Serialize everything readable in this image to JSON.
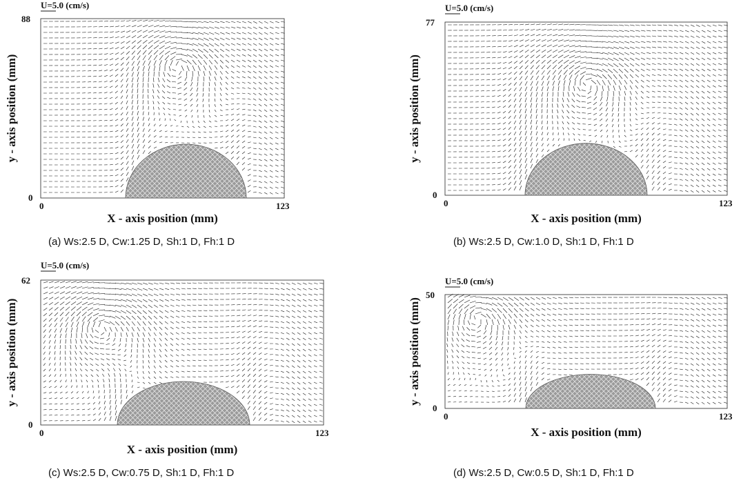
{
  "chart_data": [
    {
      "type": "vector_field",
      "reference_vector_label": "U=5.0 (cm/s)",
      "xlabel": "X - axis  position (mm)",
      "ylabel": "y - axis  position (mm)",
      "xlim": [
        0,
        123
      ],
      "ylim": [
        0,
        88
      ],
      "x_ticks": [
        "0",
        "123"
      ],
      "y_ticks": [
        "0",
        "88"
      ],
      "obstacle_width_mm": 52,
      "vortex_center_mm": [
        69,
        65
      ],
      "caption": "(a)  Ws:2.5 D,  Cw:1.25 D,  Sh:1 D,  Fh:1 D"
    },
    {
      "type": "vector_field",
      "reference_vector_label": "U=5.0 (cm/s)",
      "xlabel": "X - axis  position (mm)",
      "ylabel": "y - axis  position (mm)",
      "xlim": [
        0,
        123
      ],
      "ylim": [
        0,
        77
      ],
      "x_ticks": [
        "0",
        "123"
      ],
      "y_ticks": [
        "0",
        "77"
      ],
      "obstacle_width_mm": 54,
      "vortex_center_mm": [
        62,
        50
      ],
      "caption": "(b)  Ws:2.5 D,  Cw:1.0 D,  Sh:1 D,  Fh:1 D"
    },
    {
      "type": "vector_field",
      "reference_vector_label": "U=5.0 (cm/s)",
      "xlabel": "X - axis  position (mm)",
      "ylabel": "y - axis  position (mm)",
      "xlim": [
        0,
        123
      ],
      "ylim": [
        0,
        62
      ],
      "x_ticks": [
        "0",
        "123"
      ],
      "y_ticks": [
        "0",
        "62"
      ],
      "obstacle_width_mm": 58,
      "vortex_center_mm": [
        26,
        42
      ],
      "caption": "(c)  Ws:2.5 D,  Cw:0.75 D,  Sh:1 D,  Fh:1 D"
    },
    {
      "type": "vector_field",
      "reference_vector_label": "U=5.0 (cm/s)",
      "xlabel": "X - axis  position (mm)",
      "ylabel": "y - axis  position (mm)",
      "xlim": [
        0,
        123
      ],
      "ylim": [
        0,
        50
      ],
      "x_ticks": [
        "0",
        "123"
      ],
      "y_ticks": [
        "0",
        "50"
      ],
      "obstacle_width_mm": 56,
      "vortex_center_mm": [
        14,
        40
      ],
      "caption": "(d)  Ws:2.5 D,  Cw:0.5 D,  Sh:1 D,  Fh:1 D"
    }
  ]
}
